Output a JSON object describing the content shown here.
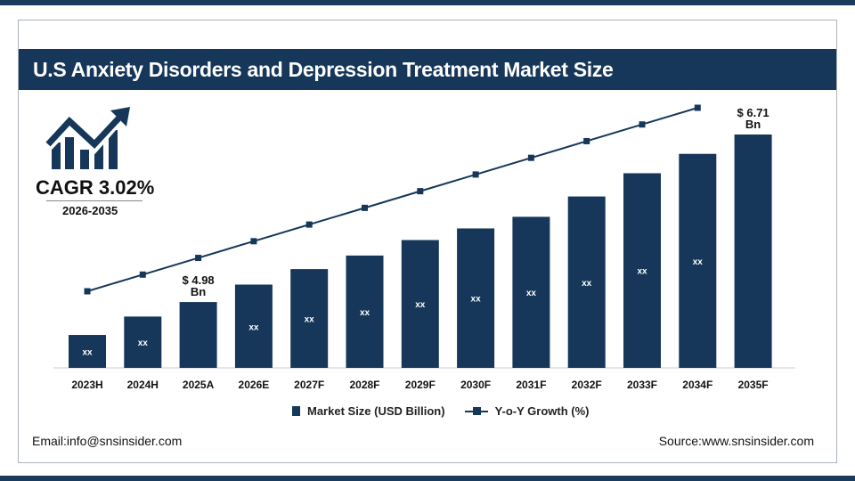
{
  "title": "U.S Anxiety Disorders and Depression Treatment Market Size",
  "cagr": {
    "label": "CAGR 3.02%",
    "period": "2026-2035"
  },
  "footer": {
    "email": "Email:info@snsinsider.com",
    "source": "Source:www.snsinsider.com"
  },
  "colors": {
    "primary": "#16375a"
  },
  "chart_data": {
    "type": "bar",
    "categories": [
      "2023H",
      "2024H",
      "2025A",
      "2026E",
      "2027F",
      "2028F",
      "2029F",
      "2030F",
      "2031F",
      "2032F",
      "2033F",
      "2034F",
      "2035F"
    ],
    "series": [
      {
        "name": "Market Size (USD Billion)",
        "type": "bar",
        "values": [
          4.64,
          4.83,
          4.98,
          5.16,
          5.32,
          5.46,
          5.62,
          5.74,
          5.86,
          6.07,
          6.31,
          6.51,
          6.71
        ],
        "bar_labels": [
          "xx",
          "xx",
          "",
          "xx",
          "xx",
          "xx",
          "xx",
          "xx",
          "xx",
          "xx",
          "xx",
          "xx",
          ""
        ]
      },
      {
        "name": "Y-o-Y Growth (%)",
        "type": "line",
        "marker": "square",
        "points_count": 12
      }
    ],
    "annotations": [
      {
        "category": "2025A",
        "text": "$ 4.98",
        "unit": "Bn"
      },
      {
        "category": "2035F",
        "text": "$ 6.71",
        "unit": "Bn"
      }
    ],
    "ylim": [
      4.3,
      7.0
    ],
    "legend": "bottom",
    "grid": false
  }
}
